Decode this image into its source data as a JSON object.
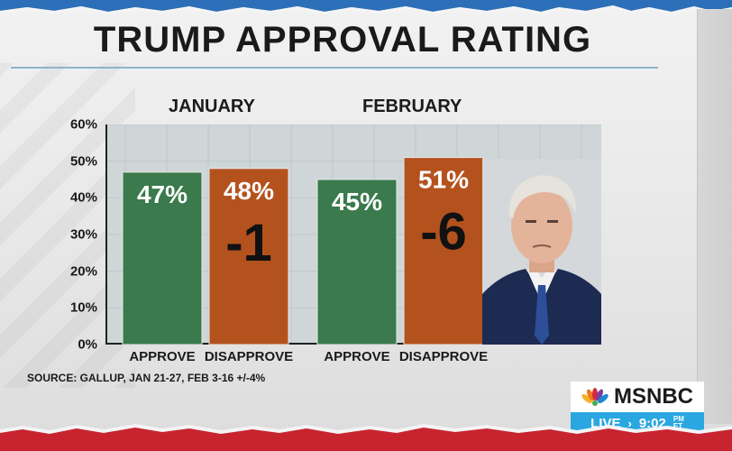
{
  "title": "TRUMP APPROVAL RATING",
  "periods": [
    "JANUARY",
    "FEBRUARY"
  ],
  "source": "SOURCE: GALLUP, JAN 21-27, FEB 3-16 +/-4%",
  "network": {
    "name": "MSNBC",
    "live": "LIVE",
    "arrow": "›",
    "time": "9:02",
    "tz_top": "PM",
    "tz_bottom": "ET"
  },
  "colors": {
    "approve": "#3a7a4c",
    "disapprove": "#b4521e",
    "plot_bg": "#cfd6d8",
    "live_bar": "#2aa7e0"
  },
  "chart_data": {
    "type": "bar",
    "title": "TRUMP APPROVAL RATING",
    "groups": [
      "JANUARY",
      "FEBRUARY"
    ],
    "categories": [
      "APPROVE",
      "DISAPPROVE",
      "APPROVE",
      "DISAPPROVE"
    ],
    "values": [
      47,
      48,
      45,
      51
    ],
    "value_labels": [
      "47%",
      "48%",
      "45%",
      "51%"
    ],
    "net_labels": [
      "",
      "-1",
      "",
      "-6"
    ],
    "yticks": [
      "0%",
      "10%",
      "20%",
      "30%",
      "40%",
      "50%",
      "60%"
    ],
    "ylim": [
      0,
      60
    ],
    "grid": true
  }
}
